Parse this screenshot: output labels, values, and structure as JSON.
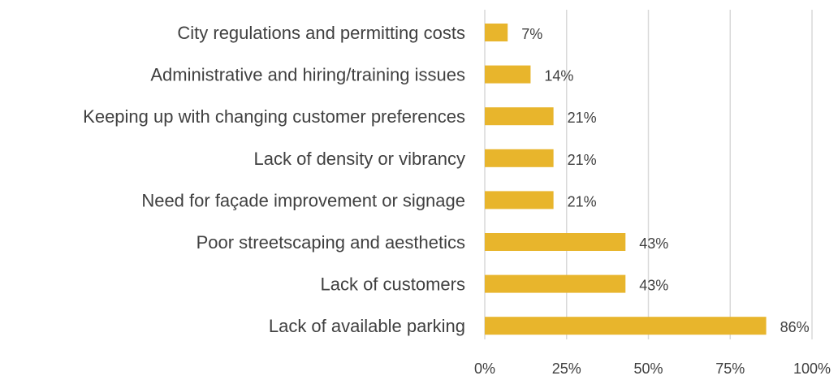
{
  "chart_data": {
    "type": "bar",
    "orientation": "horizontal",
    "title": "",
    "xlabel": "",
    "ylabel": "",
    "categories": [
      "City regulations and permitting costs",
      "Administrative and hiring/training issues",
      "Keeping up with changing customer preferences",
      "Lack of density or vibrancy",
      "Need for façade improvement or signage",
      "Poor streetscaping and aesthetics",
      "Lack of customers",
      "Lack of available parking"
    ],
    "values": [
      7,
      14,
      21,
      21,
      21,
      43,
      43,
      86
    ],
    "value_labels": [
      "7%",
      "14%",
      "21%",
      "21%",
      "21%",
      "43%",
      "43%",
      "86%"
    ],
    "xlim": [
      0,
      100
    ],
    "xticks": [
      0,
      25,
      50,
      75,
      100
    ],
    "xtick_labels": [
      "0%",
      "25%",
      "50%",
      "75%",
      "100%"
    ],
    "grid": "vertical",
    "legend": "none",
    "colors": {
      "bar": "#E8B52C",
      "grid": "#d9d9d9",
      "text": "#404040"
    }
  }
}
